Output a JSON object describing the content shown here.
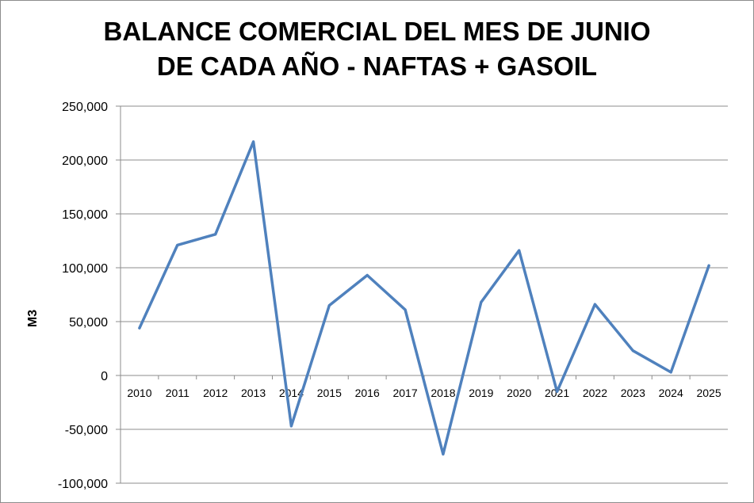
{
  "chart_data": {
    "type": "line",
    "title_line1": "BALANCE COMERCIAL DEL MES DE JUNIO",
    "title_line2": "DE CADA AÑO - NAFTAS + GASOIL",
    "xlabel": "",
    "ylabel": "M3",
    "ylim": [
      -100000,
      250000
    ],
    "yticks": [
      250000,
      200000,
      150000,
      100000,
      50000,
      0,
      -50000,
      -100000
    ],
    "ytick_labels": [
      "250,000",
      "200,000",
      "150,000",
      "100,000",
      "50,000",
      "0",
      "-50,000",
      "-100,000"
    ],
    "grid": true,
    "categories": [
      "2010",
      "2011",
      "2012",
      "2013",
      "2014",
      "2015",
      "2016",
      "2017",
      "2018",
      "2019",
      "2020",
      "2021",
      "2022",
      "2023",
      "2024",
      "2025"
    ],
    "series": [
      {
        "values": [
          44000,
          121000,
          131000,
          217000,
          -47000,
          65000,
          93000,
          61000,
          -73000,
          68000,
          116000,
          -15000,
          66000,
          23000,
          3000,
          102000
        ],
        "color": "#4f81bd"
      }
    ]
  }
}
